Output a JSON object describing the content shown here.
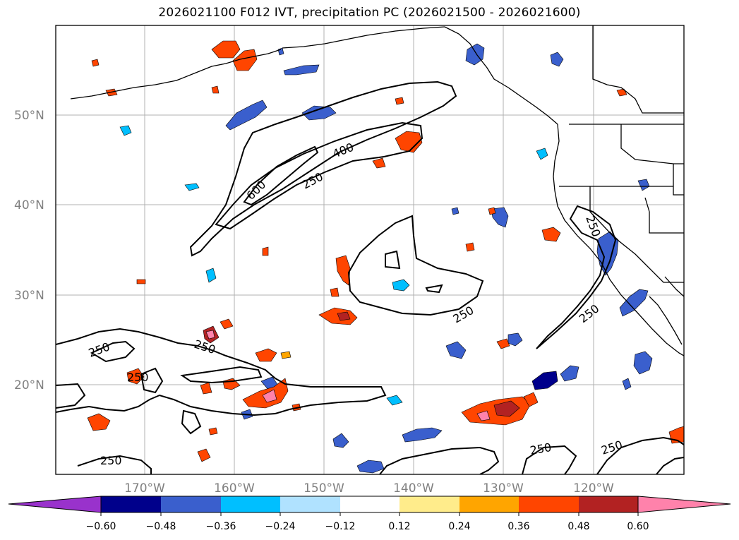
{
  "title": "2026021100 F012 IVT, precipitation PC (2026021500 - 2026021600)",
  "map": {
    "lat_labels": [
      "50°N",
      "40°N",
      "30°N",
      "20°N"
    ],
    "lon_labels": [
      "170°W",
      "160°W",
      "150°W",
      "140°W",
      "130°W",
      "120°W"
    ],
    "contour_labels": [
      "250",
      "250",
      "250",
      "250",
      "250",
      "250",
      "250",
      "250",
      "250",
      "400",
      "600",
      "250"
    ]
  },
  "colorbar": {
    "ticks": [
      "−0.60",
      "−0.48",
      "−0.36",
      "−0.24",
      "−0.12",
      "0.12",
      "0.24",
      "0.36",
      "0.48",
      "0.60"
    ],
    "colors": [
      "#9932cc",
      "#00008b",
      "#3a5fcd",
      "#00bfff",
      "#b0e2ff",
      "#ffffff",
      "#ffec8b",
      "#ffa500",
      "#ff4500",
      "#b22222",
      "#ff82ab"
    ]
  }
}
